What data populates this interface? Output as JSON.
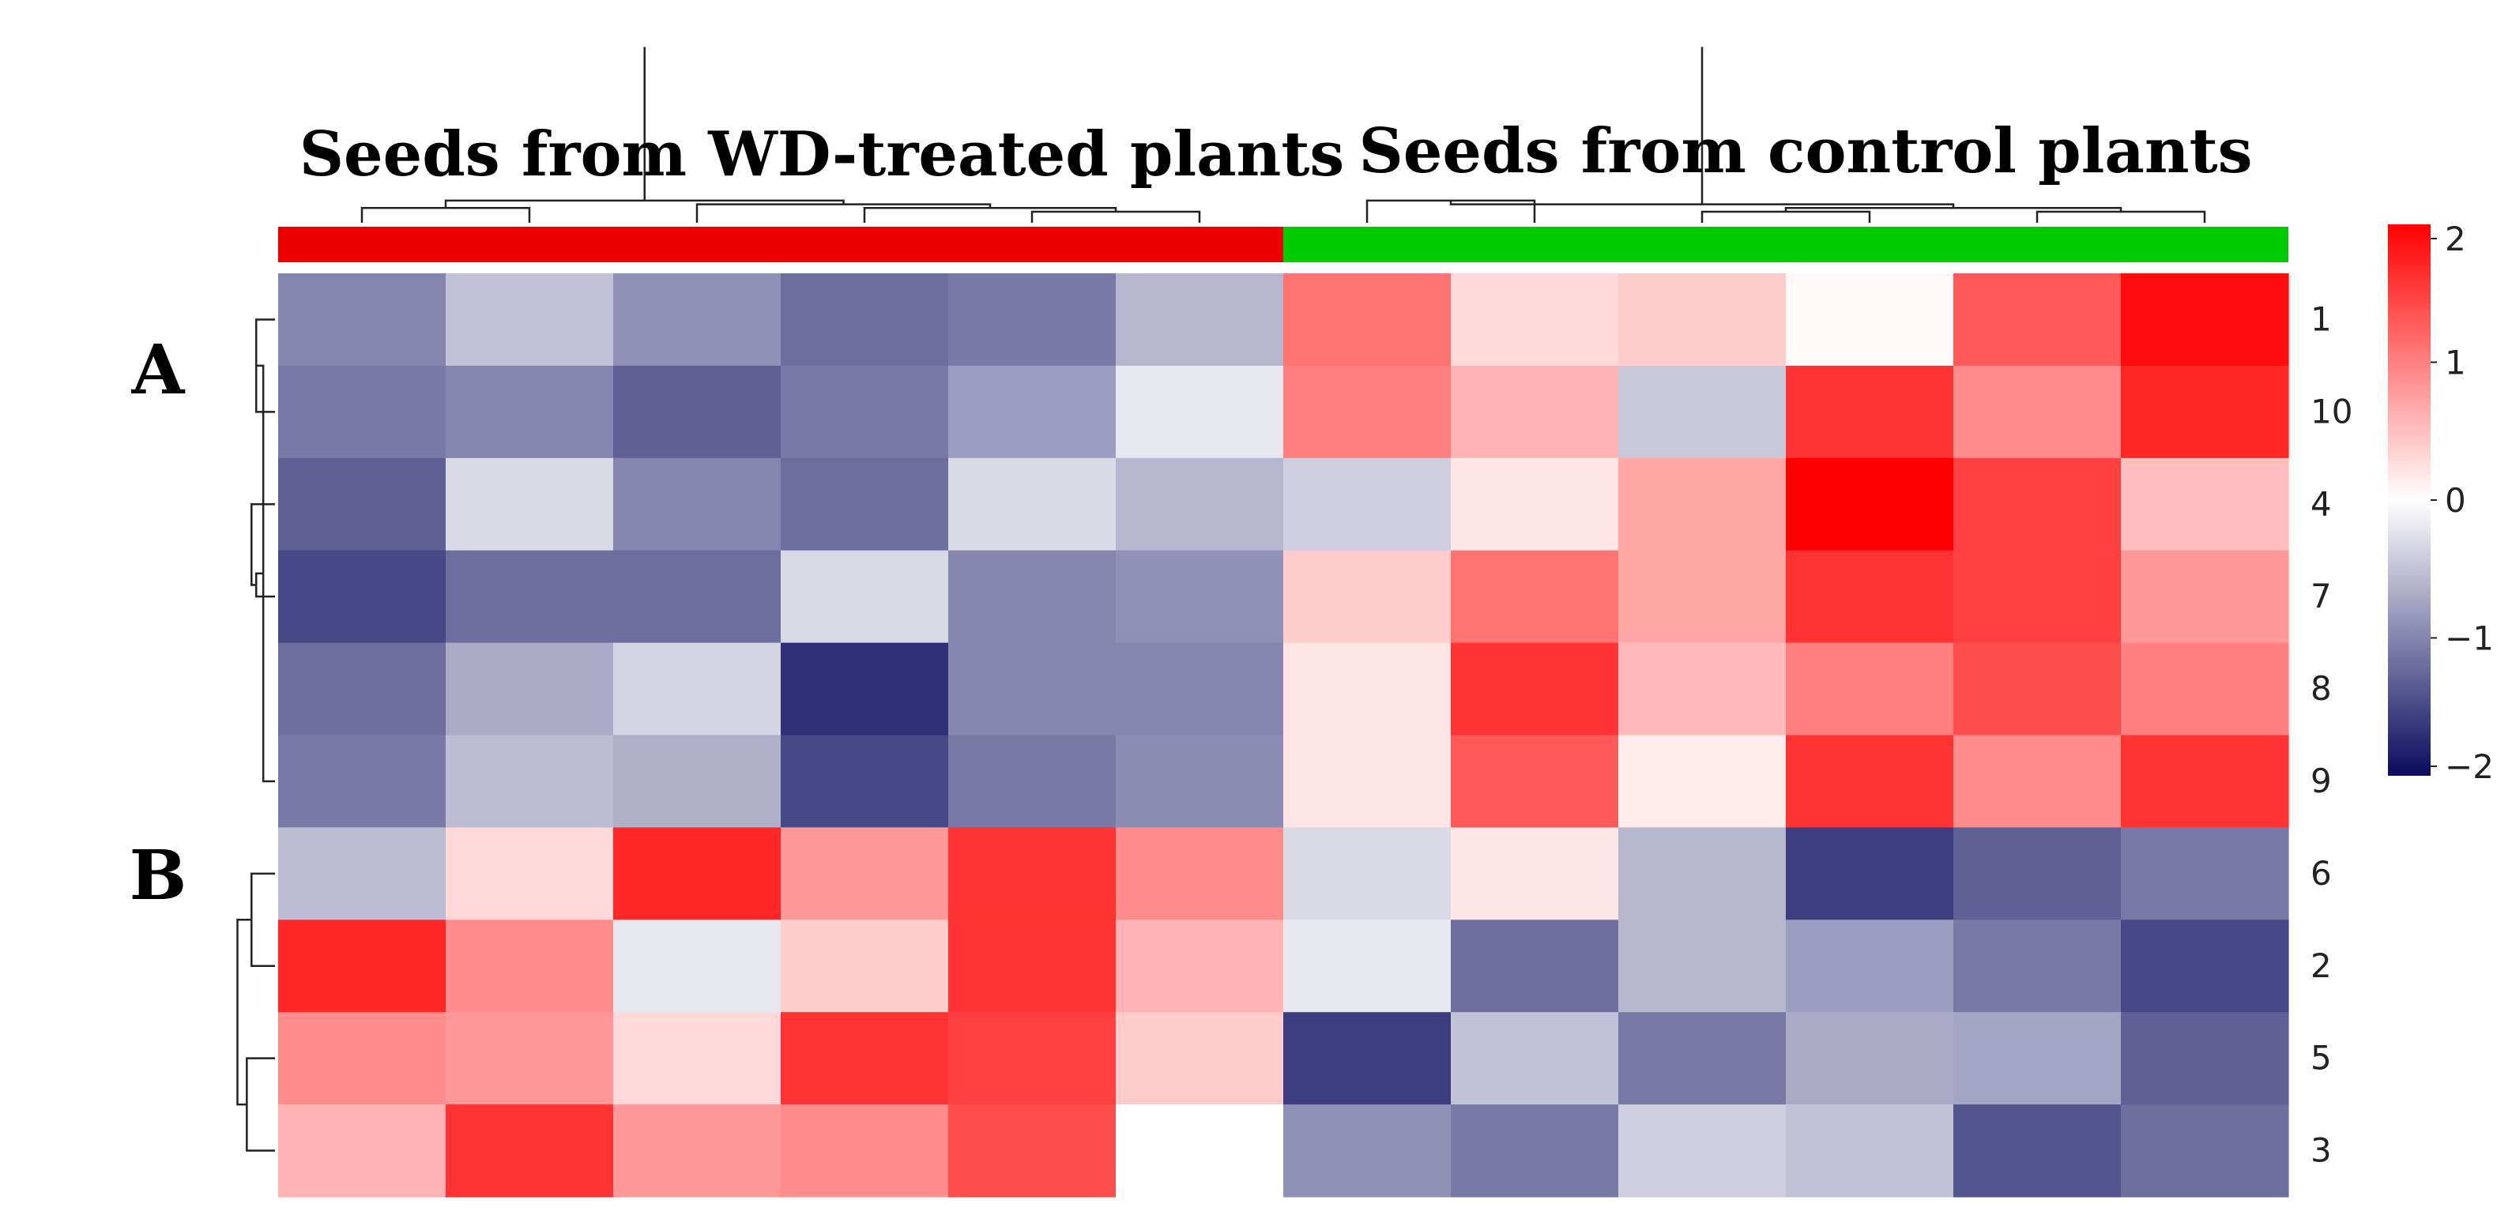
{
  "chart_data": {
    "type": "heatmap",
    "title": "",
    "group_labels": [
      "Seeds from WD-treated plants",
      "Seeds from control plants"
    ],
    "group_colors": [
      "#ee0000",
      "#00cc00"
    ],
    "groups_per_column": [
      0,
      0,
      0,
      0,
      0,
      0,
      1,
      1,
      1,
      1,
      1,
      1
    ],
    "cluster_labels": [
      "A",
      "B"
    ],
    "row_labels": [
      "1",
      "10",
      "4",
      "7",
      "8",
      "9",
      "6",
      "2",
      "5",
      "3"
    ],
    "row_clusters": [
      0,
      0,
      0,
      0,
      0,
      0,
      1,
      1,
      1,
      1
    ],
    "values": [
      [
        -1.0,
        -0.5,
        -0.9,
        -1.2,
        -1.1,
        -0.6,
        1.1,
        0.3,
        0.4,
        0.05,
        1.3,
        1.9
      ],
      [
        -1.1,
        -1.0,
        -1.3,
        -1.1,
        -0.8,
        -0.2,
        1.0,
        0.6,
        -0.45,
        1.6,
        0.9,
        1.7
      ],
      [
        -1.3,
        -0.3,
        -1.0,
        -1.2,
        -0.3,
        -0.6,
        -0.4,
        0.2,
        0.7,
        2.0,
        1.5,
        0.5
      ],
      [
        -1.5,
        -1.2,
        -1.2,
        -0.3,
        -1.0,
        -0.9,
        0.4,
        1.1,
        0.7,
        1.6,
        1.5,
        0.8
      ],
      [
        -1.2,
        -0.7,
        -0.35,
        -1.7,
        -1.0,
        -1.0,
        0.2,
        1.6,
        0.55,
        1.0,
        1.4,
        1.0
      ],
      [
        -1.1,
        -0.55,
        -0.65,
        -1.5,
        -1.1,
        -0.95,
        0.2,
        1.3,
        0.15,
        1.6,
        0.9,
        1.6
      ],
      [
        -0.55,
        0.3,
        1.7,
        0.8,
        1.6,
        0.9,
        -0.3,
        0.2,
        -0.6,
        -1.6,
        -1.3,
        -1.1
      ],
      [
        1.7,
        0.9,
        -0.2,
        0.4,
        1.6,
        0.6,
        -0.2,
        -1.2,
        -0.6,
        -0.8,
        -1.1,
        -1.5
      ],
      [
        0.9,
        0.8,
        0.3,
        1.6,
        1.5,
        0.4,
        -1.6,
        -0.5,
        -1.1,
        -0.7,
        -0.75,
        -1.3
      ],
      [
        0.6,
        1.6,
        0.8,
        0.9,
        1.4,
        0.0,
        -0.9,
        -1.1,
        -0.4,
        -0.5,
        -1.4,
        -1.2
      ]
    ],
    "color_scale": {
      "min": -2,
      "max": 2,
      "colors": [
        "#0b0b5e",
        "#ffffff",
        "#ff0000"
      ],
      "ticks": [
        "2",
        "1",
        "0",
        "−1",
        "−2"
      ],
      "tick_values": [
        2,
        1,
        0,
        -1,
        -2
      ]
    },
    "row_dendrogram": [
      [
        0,
        1,
        0.08,
        4
      ],
      [
        4,
        5,
        0.05,
        6
      ],
      [
        3,
        6,
        0.08,
        7
      ],
      [
        2,
        7,
        0.1,
        8
      ],
      [
        8,
        9,
        0.12,
        10
      ],
      [
        10,
        11,
        0.14,
        12
      ],
      [
        12,
        13,
        1.0,
        14
      ],
      [
        16,
        17,
        0.1,
        20
      ],
      [
        18,
        19,
        0.12,
        21
      ],
      [
        20,
        21,
        0.16,
        22
      ],
      [
        22,
        23,
        0.18,
        24
      ],
      [
        15,
        24,
        1.0,
        25
      ]
    ],
    "col_dendrogram": [
      [
        0,
        1,
        0.08
      ],
      [
        4,
        5,
        0.06
      ],
      [
        3,
        13,
        0.08
      ],
      [
        2,
        14,
        0.1
      ],
      [
        12,
        15,
        0.12
      ],
      [
        16,
        17,
        0.95
      ],
      [
        6,
        7,
        0.12
      ],
      [
        8,
        9,
        0.06
      ],
      [
        10,
        11,
        0.06
      ],
      [
        19,
        20,
        0.08
      ],
      [
        18,
        21,
        0.1
      ],
      [
        22,
        23,
        0.95
      ]
    ]
  }
}
